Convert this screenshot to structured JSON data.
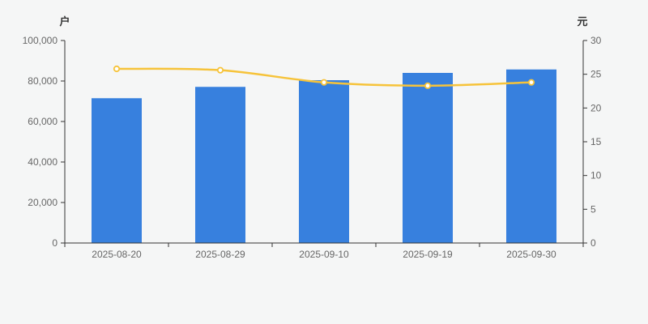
{
  "colors": {
    "background": "#f5f6f6",
    "bar": "#3780DE",
    "line": "#F6C33A",
    "marker_fill": "#ffffff",
    "axis_line": "#333333",
    "tick_text": "#666666",
    "axis_name_text": "#333333"
  },
  "chart_data": {
    "type": "bar",
    "subtype": "bar+line dual axis",
    "categories": [
      "2025-08-20",
      "2025-08-29",
      "2025-09-10",
      "2025-09-19",
      "2025-09-30"
    ],
    "series": [
      {
        "type": "bar",
        "axis": "left",
        "values": [
          71500,
          77100,
          80400,
          84000,
          85700
        ]
      },
      {
        "type": "line",
        "axis": "right",
        "values": [
          25.8,
          25.6,
          23.8,
          23.3,
          23.8
        ]
      }
    ],
    "left_axis": {
      "name": "户",
      "min": 0,
      "max": 100000,
      "interval": 20000,
      "tick_labels": [
        "0",
        "20,000",
        "40,000",
        "60,000",
        "80,000",
        "100,000"
      ]
    },
    "right_axis": {
      "name": "元",
      "min": 0,
      "max": 30,
      "interval": 5,
      "tick_labels": [
        "0",
        "5",
        "10",
        "15",
        "20",
        "25",
        "30"
      ]
    },
    "grid": false,
    "legend": false,
    "title": ""
  }
}
